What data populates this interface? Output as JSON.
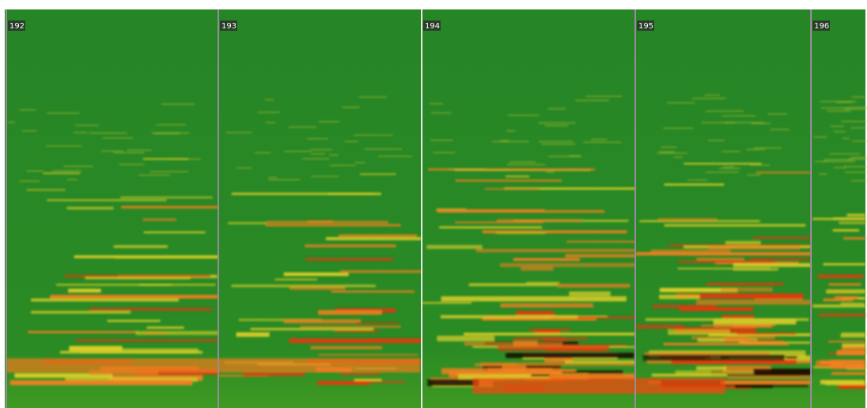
{
  "markers": [
    {
      "label": "192"
    },
    {
      "label": "193"
    },
    {
      "label": "194"
    },
    {
      "label": "195"
    },
    {
      "label": "196"
    }
  ]
}
